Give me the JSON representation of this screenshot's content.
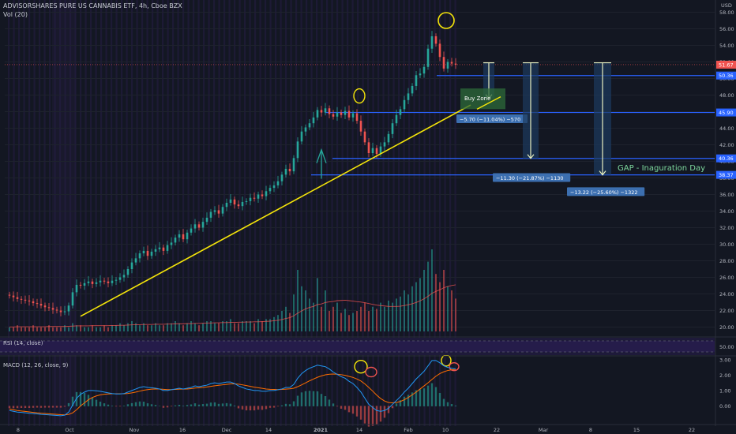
{
  "header": {
    "title": "ADVISORSHARES PURE US CANNABIS ETF, 4h, Cboe BZX",
    "volume_label": "Vol (20)"
  },
  "rsi_pane": {
    "label": "RSI (14, close)",
    "level_label": "50.00"
  },
  "macd_pane": {
    "label": "MACD (12, 26, close, 9)"
  },
  "colors": {
    "background": "#131722",
    "up": "#26a69a",
    "down": "#ef5350",
    "trendline": "#f5e50a",
    "level_line": "#2962ff",
    "macd_line": "#2196f3",
    "signal_line": "#ff6d00",
    "annotation_circle_yellow": "#f5e50a",
    "annotation_circle_red": "#ef5350",
    "arrow": "#e8f0c0",
    "gap_text": "#7ed99e"
  },
  "chart_data": {
    "type": "candlestick",
    "currency": "USD",
    "timeframe": "4h",
    "x_tick_labels": [
      "8",
      "Oct",
      "Nov",
      "16",
      "Dec",
      "14",
      "2021",
      "14",
      "Feb",
      "10",
      "22",
      "Mar",
      "8",
      "15",
      "22"
    ],
    "y_tick_labels": [
      "58.00",
      "56.00",
      "54.00",
      "52.00",
      "50.00",
      "48.00",
      "46.00",
      "44.00",
      "42.00",
      "40.00",
      "38.00",
      "36.00",
      "34.00",
      "32.00",
      "30.00",
      "28.00",
      "26.00",
      "24.00",
      "22.00",
      "20.00"
    ],
    "ylim": [
      19.0,
      59.0
    ],
    "last_price_label": "51.67",
    "horizontal_levels": [
      {
        "label": "50.36",
        "price": 50.36
      },
      {
        "label": "45.90",
        "price": 45.9
      },
      {
        "label": "40.36",
        "price": 40.36
      },
      {
        "label": "38.37",
        "price": 38.37
      }
    ],
    "trendline": {
      "start": {
        "bar": 12,
        "price": 21.3
      },
      "end": {
        "bar": 112,
        "price": 46.8
      }
    },
    "annotations": {
      "buy_zone": "Buy Zone",
      "measure_1": "−5.70 (−11.04%) −570",
      "measure_2": "−11.30 (−21.87%) −1130",
      "measure_3": "−13.22 (−25.60%) −1322",
      "gap_text": "GAP - Inaguration Day"
    },
    "price_closes": [
      23.8,
      23.6,
      23.4,
      23.3,
      23.2,
      23.1,
      22.9,
      22.8,
      22.6,
      22.4,
      22.3,
      22.1,
      22.0,
      21.8,
      21.9,
      22.6,
      24.2,
      25.1,
      25.0,
      25.3,
      25.5,
      25.2,
      25.4,
      25.6,
      25.5,
      25.3,
      25.6,
      25.7,
      26.0,
      26.3,
      27.0,
      27.8,
      28.3,
      28.9,
      29.2,
      28.6,
      29.1,
      29.4,
      29.6,
      29.2,
      29.9,
      30.2,
      30.8,
      31.2,
      30.6,
      31.4,
      31.9,
      32.4,
      32.0,
      32.7,
      33.2,
      33.9,
      34.1,
      33.7,
      34.5,
      35.0,
      35.4,
      34.8,
      34.6,
      35.1,
      35.2,
      35.6,
      35.5,
      36.0,
      35.8,
      36.4,
      36.8,
      37.1,
      37.6,
      38.4,
      39.1,
      38.8,
      40.4,
      42.4,
      43.6,
      44.1,
      44.6,
      45.3,
      46.2,
      45.9,
      46.4,
      45.7,
      45.4,
      45.9,
      45.6,
      46.1,
      45.3,
      45.8,
      44.9,
      43.6,
      42.3,
      41.0,
      41.6,
      40.9,
      41.8,
      42.3,
      43.3,
      44.6,
      45.6,
      46.3,
      47.4,
      48.2,
      49.1,
      50.4,
      50.6,
      51.4,
      53.6,
      55.1,
      54.2,
      52.6,
      51.2,
      52.0,
      51.8,
      51.67
    ],
    "volumes": [
      2,
      2,
      3,
      2,
      2,
      2,
      3,
      2,
      2,
      2,
      3,
      2,
      2,
      2,
      3,
      2,
      4,
      3,
      3,
      2,
      2,
      3,
      2,
      2,
      3,
      2,
      3,
      3,
      4,
      3,
      4,
      5,
      4,
      3,
      4,
      3,
      3,
      4,
      3,
      3,
      4,
      4,
      5,
      4,
      3,
      4,
      5,
      4,
      3,
      4,
      5,
      5,
      4,
      4,
      5,
      5,
      6,
      4,
      4,
      5,
      5,
      5,
      4,
      6,
      5,
      6,
      6,
      7,
      8,
      10,
      12,
      9,
      18,
      30,
      22,
      20,
      16,
      14,
      26,
      12,
      20,
      10,
      12,
      14,
      9,
      11,
      8,
      9,
      10,
      12,
      14,
      10,
      12,
      11,
      14,
      12,
      15,
      14,
      16,
      17,
      20,
      18,
      22,
      24,
      26,
      30,
      34,
      40,
      28,
      24,
      30,
      22,
      20,
      16
    ],
    "volume_ma": [
      2.2,
      2.2,
      2.3,
      2.3,
      2.3,
      2.3,
      2.3,
      2.3,
      2.3,
      2.3,
      2.4,
      2.4,
      2.4,
      2.4,
      2.4,
      2.5,
      2.6,
      2.7,
      2.7,
      2.7,
      2.7,
      2.8,
      2.8,
      2.8,
      2.8,
      2.8,
      2.9,
      2.9,
      3.0,
      3.0,
      3.1,
      3.2,
      3.3,
      3.3,
      3.4,
      3.4,
      3.4,
      3.5,
      3.5,
      3.5,
      3.6,
      3.6,
      3.7,
      3.7,
      3.7,
      3.8,
      3.8,
      3.9,
      3.9,
      4.0,
      4.1,
      4.1,
      4.2,
      4.2,
      4.3,
      4.3,
      4.4,
      4.4,
      4.5,
      4.5,
      4.6,
      4.6,
      4.7,
      4.7,
      4.8,
      4.9,
      5.0,
      5.2,
      5.4,
      5.8,
      6.3,
      6.7,
      7.6,
      8.9,
      10.0,
      11.0,
      11.7,
      12.2,
      13.1,
      13.4,
      14.1,
      14.4,
      14.6,
      15.0,
      15.1,
      15.2,
      15.0,
      14.8,
      14.5,
      14.3,
      14.0,
      13.6,
      13.2,
      12.8,
      12.6,
      12.4,
      12.2,
      12.2,
      12.2,
      12.3,
      12.6,
      13.0,
      13.5,
      14.1,
      14.9,
      15.9,
      17.1,
      18.6,
      19.5,
      20.3,
      21.3,
      21.9,
      22.4,
      22.7
    ],
    "macd": [
      -0.3,
      -0.35,
      -0.4,
      -0.42,
      -0.45,
      -0.48,
      -0.5,
      -0.52,
      -0.55,
      -0.56,
      -0.58,
      -0.6,
      -0.62,
      -0.64,
      -0.6,
      -0.4,
      0.05,
      0.5,
      0.75,
      0.9,
      1.0,
      1.0,
      0.98,
      0.95,
      0.9,
      0.85,
      0.8,
      0.78,
      0.78,
      0.8,
      0.9,
      1.0,
      1.1,
      1.2,
      1.25,
      1.2,
      1.18,
      1.15,
      1.1,
      1.0,
      1.0,
      1.05,
      1.1,
      1.15,
      1.1,
      1.15,
      1.2,
      1.3,
      1.25,
      1.3,
      1.35,
      1.45,
      1.5,
      1.45,
      1.5,
      1.55,
      1.55,
      1.45,
      1.3,
      1.2,
      1.1,
      1.05,
      1.0,
      1.0,
      0.95,
      0.95,
      1.0,
      1.0,
      1.05,
      1.1,
      1.2,
      1.2,
      1.4,
      1.8,
      2.1,
      2.3,
      2.45,
      2.55,
      2.65,
      2.6,
      2.55,
      2.4,
      2.2,
      2.05,
      1.9,
      1.8,
      1.6,
      1.45,
      1.2,
      0.9,
      0.5,
      0.1,
      -0.1,
      -0.3,
      -0.35,
      -0.3,
      -0.15,
      0.1,
      0.35,
      0.6,
      0.9,
      1.15,
      1.45,
      1.75,
      2.0,
      2.25,
      2.6,
      2.95,
      2.95,
      2.8,
      2.6,
      2.5,
      2.45,
      2.4
    ],
    "signal": [
      -0.2,
      -0.25,
      -0.3,
      -0.33,
      -0.36,
      -0.39,
      -0.42,
      -0.45,
      -0.47,
      -0.49,
      -0.51,
      -0.53,
      -0.55,
      -0.57,
      -0.58,
      -0.55,
      -0.45,
      -0.25,
      0.0,
      0.2,
      0.4,
      0.55,
      0.65,
      0.72,
      0.76,
      0.78,
      0.79,
      0.79,
      0.79,
      0.79,
      0.81,
      0.85,
      0.9,
      0.96,
      1.02,
      1.06,
      1.09,
      1.1,
      1.1,
      1.08,
      1.06,
      1.06,
      1.07,
      1.09,
      1.09,
      1.1,
      1.12,
      1.16,
      1.18,
      1.2,
      1.23,
      1.27,
      1.31,
      1.34,
      1.37,
      1.4,
      1.43,
      1.43,
      1.41,
      1.37,
      1.32,
      1.27,
      1.22,
      1.18,
      1.14,
      1.1,
      1.08,
      1.07,
      1.06,
      1.07,
      1.09,
      1.11,
      1.15,
      1.25,
      1.37,
      1.5,
      1.63,
      1.75,
      1.86,
      1.95,
      2.02,
      2.06,
      2.07,
      2.06,
      2.03,
      1.99,
      1.92,
      1.85,
      1.75,
      1.62,
      1.43,
      1.2,
      0.96,
      0.7,
      0.48,
      0.32,
      0.22,
      0.2,
      0.22,
      0.29,
      0.4,
      0.55,
      0.72,
      0.9,
      1.1,
      1.3,
      1.5,
      1.72,
      1.93,
      2.1,
      2.22,
      2.3,
      2.35,
      2.38
    ]
  }
}
